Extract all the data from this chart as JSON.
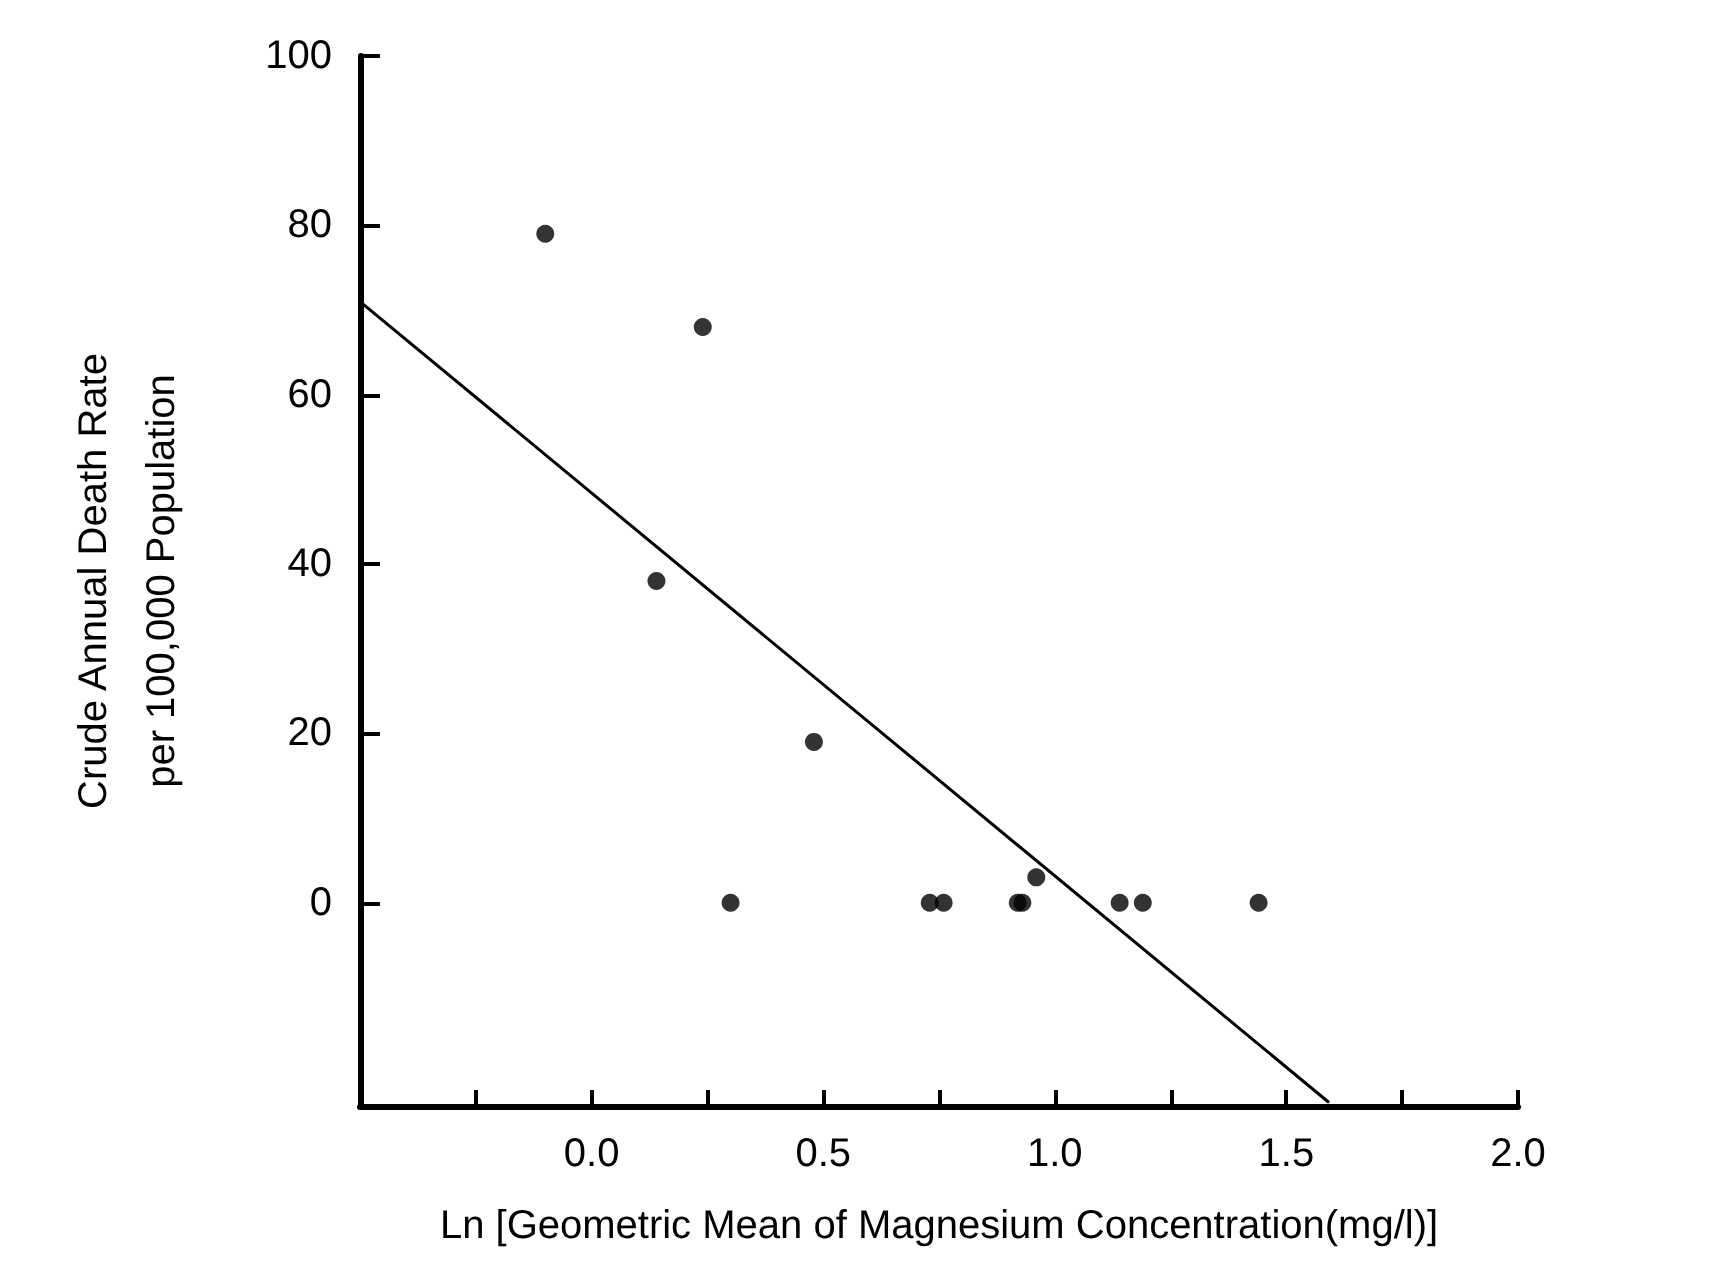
{
  "chart_data": {
    "type": "scatter",
    "xlabel": "Ln [Geometric Mean of Magnesium Concentration(mg/l)]",
    "ylabel": "Crude Annual Death Rate\nper 100,000 Population",
    "xlim": [
      -0.5,
      2.0
    ],
    "ylim": [
      -24,
      100
    ],
    "xticks": [
      {
        "value": -0.25,
        "label": null
      },
      "0.0",
      {
        "value": 0.25,
        "label": null
      },
      {
        "value": 0.5,
        "label": "0.5"
      },
      {
        "value": 0.75,
        "label": null
      },
      {
        "value": 1.0,
        "label": "1.0"
      },
      {
        "value": 1.25,
        "label": null
      },
      {
        "value": 1.5,
        "label": "1.5"
      },
      {
        "value": 1.75,
        "label": null
      },
      {
        "value": 2.0,
        "label": "2.0"
      }
    ],
    "yticks": [
      0,
      20,
      40,
      60,
      80,
      100
    ],
    "grid": false,
    "marker": "circle",
    "series": [
      {
        "color": "#000000",
        "x": [
          -0.1,
          0.24,
          0.14,
          0.48,
          0.3,
          0.73,
          0.76,
          0.92,
          0.93,
          0.96,
          1.14,
          1.19,
          1.44
        ],
        "values": [
          79,
          68,
          38,
          19,
          0,
          0,
          0,
          0,
          0,
          3,
          0,
          0,
          0
        ]
      },
      {
        "type": "line",
        "color": "#000000",
        "marker": "none",
        "line_style": "solid",
        "x": [
          -0.5,
          1.59
        ],
        "values": [
          71,
          -23.5
        ]
      }
    ]
  }
}
